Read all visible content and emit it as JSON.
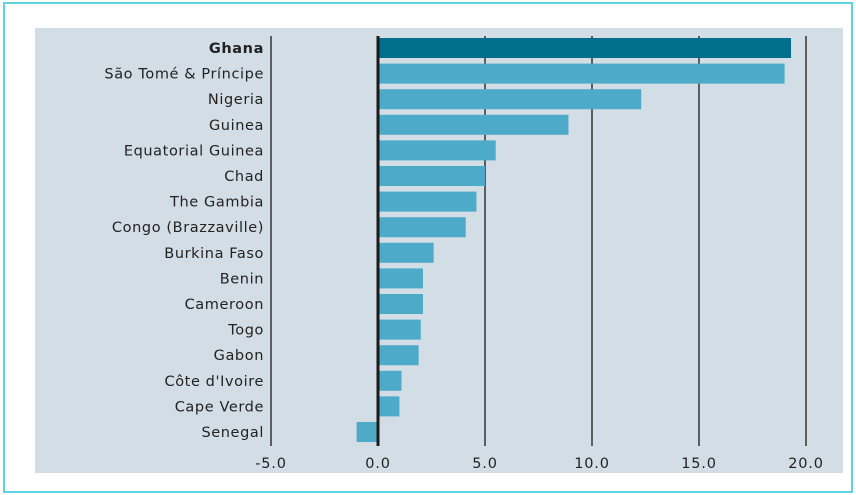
{
  "chart_data": {
    "type": "bar",
    "orientation": "horizontal",
    "categories": [
      "Ghana",
      "São Tomé & Príncipe",
      "Nigeria",
      "Guinea",
      "Equatorial Guinea",
      "Chad",
      "The Gambia",
      "Congo (Brazzaville)",
      "Burkina Faso",
      "Benin",
      "Cameroon",
      "Togo",
      "Gabon",
      "Côte d'Ivoire",
      "Cape Verde",
      "Senegal"
    ],
    "values": [
      19.3,
      19.0,
      12.3,
      8.9,
      5.5,
      5.0,
      4.6,
      4.1,
      2.6,
      2.1,
      2.1,
      2.0,
      1.9,
      1.1,
      1.0,
      -1.0
    ],
    "highlight": "Ghana",
    "xlim": [
      -5.0,
      20.0
    ],
    "xticks": [
      "-5.0",
      "0.0",
      "5.0",
      "10.0",
      "15.0",
      "20.0"
    ],
    "xtick_values": [
      -5,
      0,
      5,
      10,
      15,
      20
    ],
    "grid": true,
    "title": "",
    "xlabel": "",
    "ylabel": "",
    "colors": {
      "bar": "#4dabc9",
      "highlight_bar": "#006f8c",
      "panel_background": "#d3dde5",
      "grid": "#1a1a1a",
      "frame_border": "#5fd3e0"
    }
  }
}
